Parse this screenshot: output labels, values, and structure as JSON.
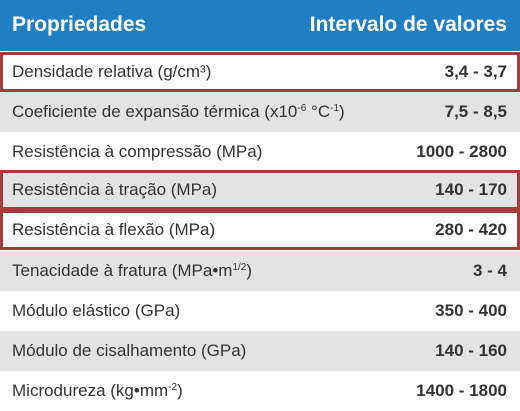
{
  "header": {
    "left": "Propriedades",
    "right": "Intervalo de valores"
  },
  "rows": [
    {
      "label": "Densidade relativa (g/cm³)",
      "value": "3,4 - 3,7",
      "highlighted": true
    },
    {
      "label_before": "Coeficiente de expansão térmica (x10",
      "label_sup1": "-6",
      "label_mid": " °C",
      "label_sup2": "-1",
      "label_after": ")",
      "value": "7,5 - 8,5",
      "highlighted": false
    },
    {
      "label": "Resistência à compressão (MPa)",
      "value": "1000 - 2800",
      "highlighted": false
    },
    {
      "label": "Resistência à tração (MPa)",
      "value": "140 - 170",
      "highlighted": true
    },
    {
      "label": "Resistência à flexão (MPa)",
      "value": "280 - 420",
      "highlighted": true
    },
    {
      "label_before": "Tenacidade à fratura (MPa•m",
      "label_sup": "1/2",
      "label_after": ")",
      "value": "3 - 4",
      "highlighted": false
    },
    {
      "label": "Módulo elástico (GPa)",
      "value": "350 - 400",
      "highlighted": false
    },
    {
      "label": "Módulo de cisalhamento (GPa)",
      "value": "140 - 160",
      "highlighted": false
    },
    {
      "label_before": "Microdureza (kg•mm",
      "label_sup": "-2",
      "label_after": ")",
      "value": "1400 - 1800",
      "highlighted": false
    }
  ],
  "colors": {
    "header_bg": "#1f7fc4",
    "row_shaded": "#e3e3e3",
    "row_plain": "#ffffff",
    "highlight_border": "#a73a3a",
    "text": "#333333"
  }
}
